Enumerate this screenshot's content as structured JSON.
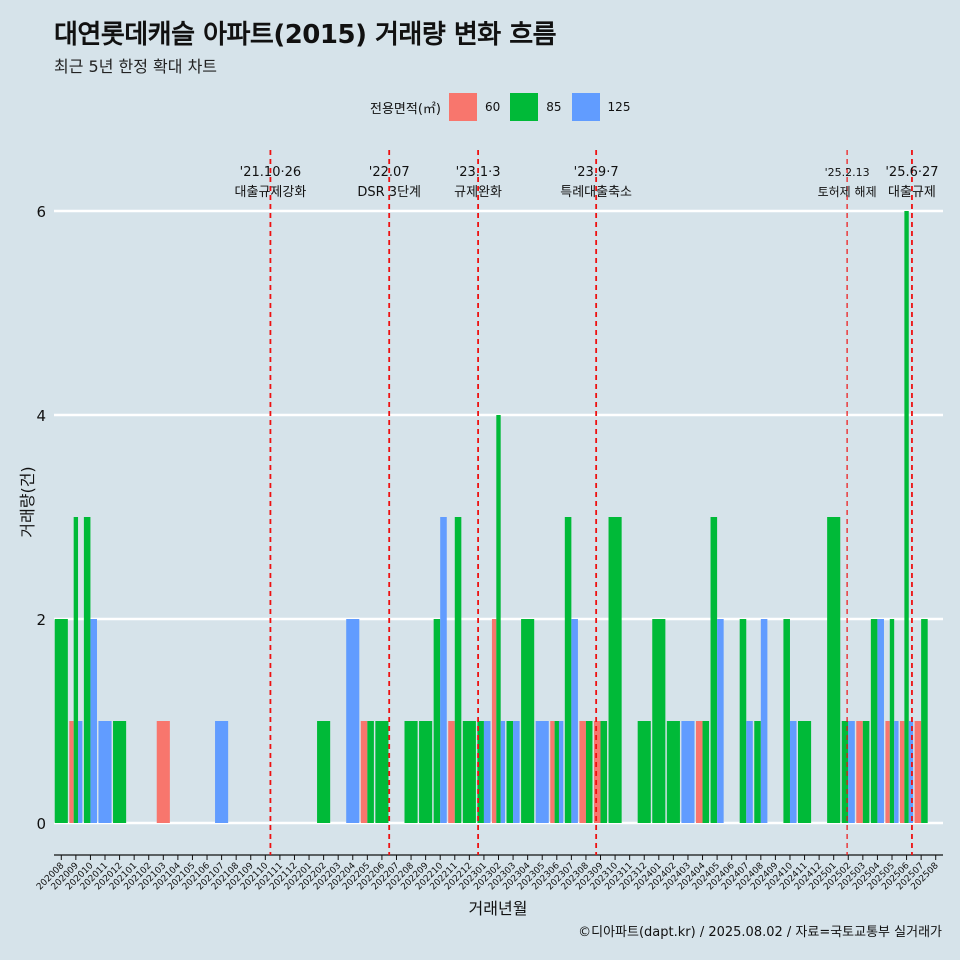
{
  "chart_data": {
    "type": "bar",
    "title": "대연롯데캐슬 아파트(2015) 거래량 변화 흐름",
    "subtitle": "최근 5년 한정 확대 차트",
    "xlabel": "거래년월",
    "ylabel": "거래량(건)",
    "ylim": [
      0,
      6.5
    ],
    "yticks": [
      0,
      2,
      4,
      6
    ],
    "grid": true,
    "legend": {
      "title": "전용면적(㎡)",
      "position": "top"
    },
    "caption": "©디아파트(dapt.kr) / 2025.08.02 / 자료=국토교통부 실거래가",
    "categories": [
      "202008",
      "202009",
      "202010",
      "202011",
      "202012",
      "202101",
      "202102",
      "202103",
      "202104",
      "202105",
      "202106",
      "202107",
      "202108",
      "202109",
      "202110",
      "202111",
      "202112",
      "202201",
      "202202",
      "202203",
      "202204",
      "202205",
      "202206",
      "202207",
      "202208",
      "202209",
      "202210",
      "202211",
      "202212",
      "202301",
      "202302",
      "202303",
      "202304",
      "202305",
      "202306",
      "202307",
      "202308",
      "202309",
      "202310",
      "202311",
      "202312",
      "202401",
      "202402",
      "202403",
      "202404",
      "202405",
      "202406",
      "202407",
      "202408",
      "202409",
      "202410",
      "202411",
      "202412",
      "202501",
      "202502",
      "202503",
      "202504",
      "202505",
      "202506",
      "202507",
      "202508"
    ],
    "series": [
      {
        "name": "60",
        "color": "#f8766d",
        "values": [
          0,
          1,
          0,
          0,
          0,
          0,
          0,
          1,
          0,
          0,
          0,
          0,
          0,
          0,
          0,
          0,
          0,
          0,
          0,
          0,
          0,
          1,
          0,
          0,
          0,
          0,
          0,
          1,
          0,
          0,
          2,
          0,
          0,
          0,
          1,
          0,
          1,
          1,
          0,
          0,
          0,
          0,
          0,
          0,
          1,
          0,
          0,
          0,
          0,
          0,
          0,
          0,
          0,
          0,
          0,
          1,
          0,
          1,
          1,
          1,
          0
        ]
      },
      {
        "name": "85",
        "color": "#00ba38",
        "values": [
          2,
          3,
          3,
          0,
          1,
          0,
          0,
          0,
          0,
          0,
          0,
          0,
          0,
          0,
          0,
          0,
          0,
          0,
          1,
          0,
          0,
          1,
          1,
          0,
          1,
          1,
          2,
          3,
          1,
          1,
          4,
          1,
          2,
          0,
          1,
          3,
          1,
          1,
          3,
          0,
          1,
          2,
          1,
          0,
          1,
          3,
          0,
          2,
          1,
          0,
          2,
          1,
          0,
          3,
          1,
          1,
          2,
          2,
          6,
          2,
          0
        ]
      },
      {
        "name": "125",
        "color": "#619cff",
        "values": [
          0,
          1,
          2,
          1,
          0,
          0,
          0,
          0,
          0,
          0,
          0,
          1,
          0,
          0,
          0,
          0,
          0,
          0,
          0,
          0,
          2,
          0,
          0,
          0,
          0,
          0,
          3,
          0,
          0,
          1,
          1,
          1,
          0,
          1,
          1,
          2,
          0,
          0,
          0,
          0,
          0,
          0,
          0,
          1,
          0,
          2,
          0,
          1,
          2,
          0,
          1,
          0,
          0,
          0,
          1,
          0,
          2,
          1,
          1,
          0,
          0
        ]
      }
    ],
    "events": [
      {
        "date": "'21.10·26",
        "label": "대출규제강화",
        "month": "202110",
        "frac": 0.85,
        "style": "bold"
      },
      {
        "date": "'22.07",
        "label": "DSR 3단계",
        "month": "202207",
        "frac": 0.0,
        "style": "bold"
      },
      {
        "date": "'23.1·3",
        "label": "규제완화",
        "month": "202301",
        "frac": 0.1,
        "style": "bold"
      },
      {
        "date": "'23.9·7",
        "label": "특례대출축소",
        "month": "202309",
        "frac": 0.2,
        "style": "bold"
      },
      {
        "date": "'25.2.13",
        "label": "토허제 해제",
        "month": "202502",
        "frac": 0.42,
        "style": "thin"
      },
      {
        "date": "'25.6·27",
        "label": "대출규제",
        "month": "202506",
        "frac": 0.87,
        "style": "bold"
      }
    ]
  }
}
